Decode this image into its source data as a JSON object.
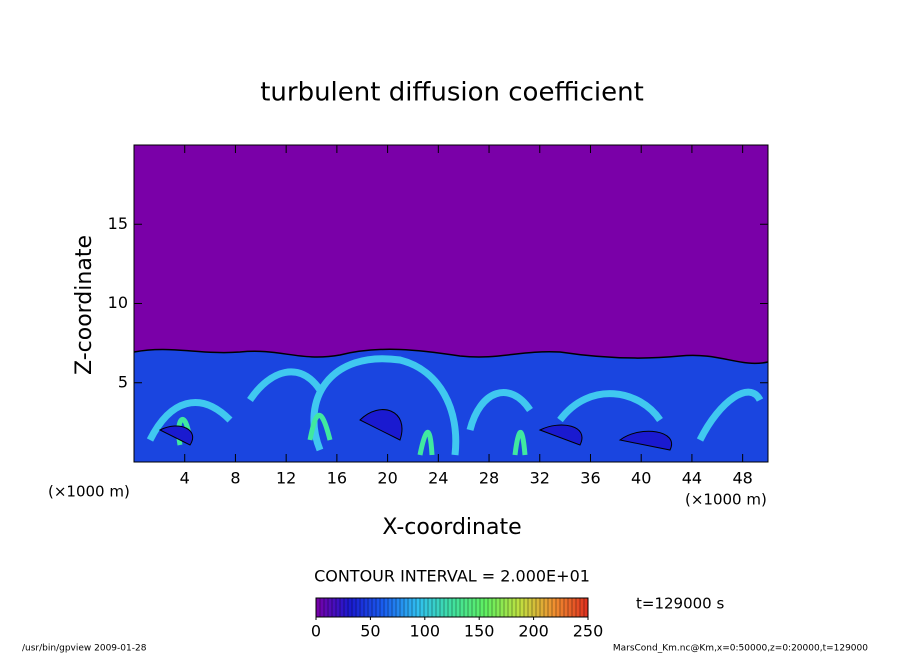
{
  "chart_data": {
    "type": "contour",
    "title": "turbulent diffusion coefficient",
    "xlabel": "X-coordinate",
    "ylabel": "Z-coordinate",
    "xunit": "(×1000 m)",
    "yunit": "(×1000 m)",
    "xlim": [
      0,
      50
    ],
    "xticks": [
      4,
      8,
      12,
      16,
      20,
      24,
      28,
      32,
      36,
      40,
      44,
      48
    ],
    "ylim": [
      0,
      20
    ],
    "yticks": [
      5,
      10,
      15
    ],
    "contour_note": "CONTOUR INTERVAL = 2.000E+01",
    "time_label": "t=129000 s",
    "colorbar": {
      "lim": [
        0,
        250
      ],
      "ticks": [
        0,
        50,
        100,
        150,
        200,
        250
      ],
      "colors": [
        "#7a00a8",
        "#1a1ad0",
        "#1a60f0",
        "#30c0f0",
        "#40e0a0",
        "#60f060",
        "#c0e040",
        "#f09030",
        "#e03020"
      ]
    },
    "footer_left": "/usr/bin/gpview  2009-01-28",
    "footer_right": "MarsCond_Km.nc@Km,x=0:50000,z=0:20000,t=129000"
  }
}
